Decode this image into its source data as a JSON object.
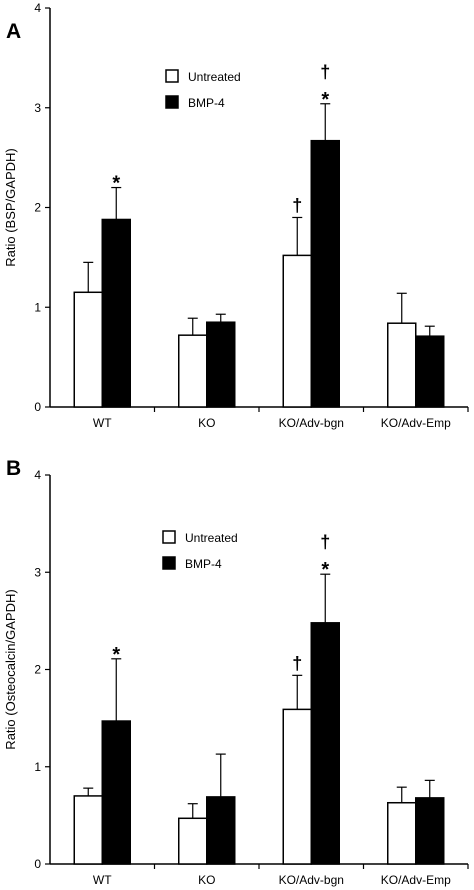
{
  "chart_data": [
    {
      "type": "bar",
      "panel_label": "A",
      "ylabel": "Ratio (BSP/GAPDH)",
      "xlabel": "",
      "ylim": [
        0,
        4
      ],
      "yticks": [
        "0",
        "1",
        "2",
        "3",
        "4"
      ],
      "categories": [
        "WT",
        "KO",
        "KO/Adv-bgn",
        "KO/Adv-Emp"
      ],
      "legend_position": "top-center",
      "series": [
        {
          "name": "Untreated",
          "color": "#ffffff",
          "values": [
            1.15,
            0.72,
            1.52,
            0.84
          ],
          "errors": [
            0.3,
            0.17,
            0.38,
            0.3
          ]
        },
        {
          "name": "BMP-4",
          "color": "#000000",
          "values": [
            1.88,
            0.85,
            2.67,
            0.71
          ],
          "errors": [
            0.32,
            0.08,
            0.37,
            0.1
          ]
        }
      ],
      "annotations": [
        {
          "category": 0,
          "series": 1,
          "text": "*"
        },
        {
          "category": 2,
          "series": 0,
          "text": "†"
        },
        {
          "category": 2,
          "series": 1,
          "text": "*"
        },
        {
          "category": 2,
          "series": 1,
          "text": "†"
        }
      ]
    },
    {
      "type": "bar",
      "panel_label": "B",
      "ylabel": "Ratio (Osteocalcin/GAPDH)",
      "xlabel": "",
      "ylim": [
        0,
        4
      ],
      "yticks": [
        "0",
        "1",
        "2",
        "3",
        "4"
      ],
      "categories": [
        "WT",
        "KO",
        "KO/Adv-bgn",
        "KO/Adv-Emp"
      ],
      "legend_position": "top-center",
      "series": [
        {
          "name": "Untreated",
          "color": "#ffffff",
          "values": [
            0.7,
            0.47,
            1.59,
            0.63
          ],
          "errors": [
            0.08,
            0.15,
            0.35,
            0.16
          ]
        },
        {
          "name": "BMP-4",
          "color": "#000000",
          "values": [
            1.47,
            0.69,
            2.48,
            0.68
          ],
          "errors": [
            0.64,
            0.44,
            0.5,
            0.18
          ]
        }
      ],
      "annotations": [
        {
          "category": 0,
          "series": 1,
          "text": "*"
        },
        {
          "category": 2,
          "series": 0,
          "text": "†"
        },
        {
          "category": 2,
          "series": 1,
          "text": "*"
        },
        {
          "category": 2,
          "series": 1,
          "text": "†"
        }
      ]
    }
  ]
}
